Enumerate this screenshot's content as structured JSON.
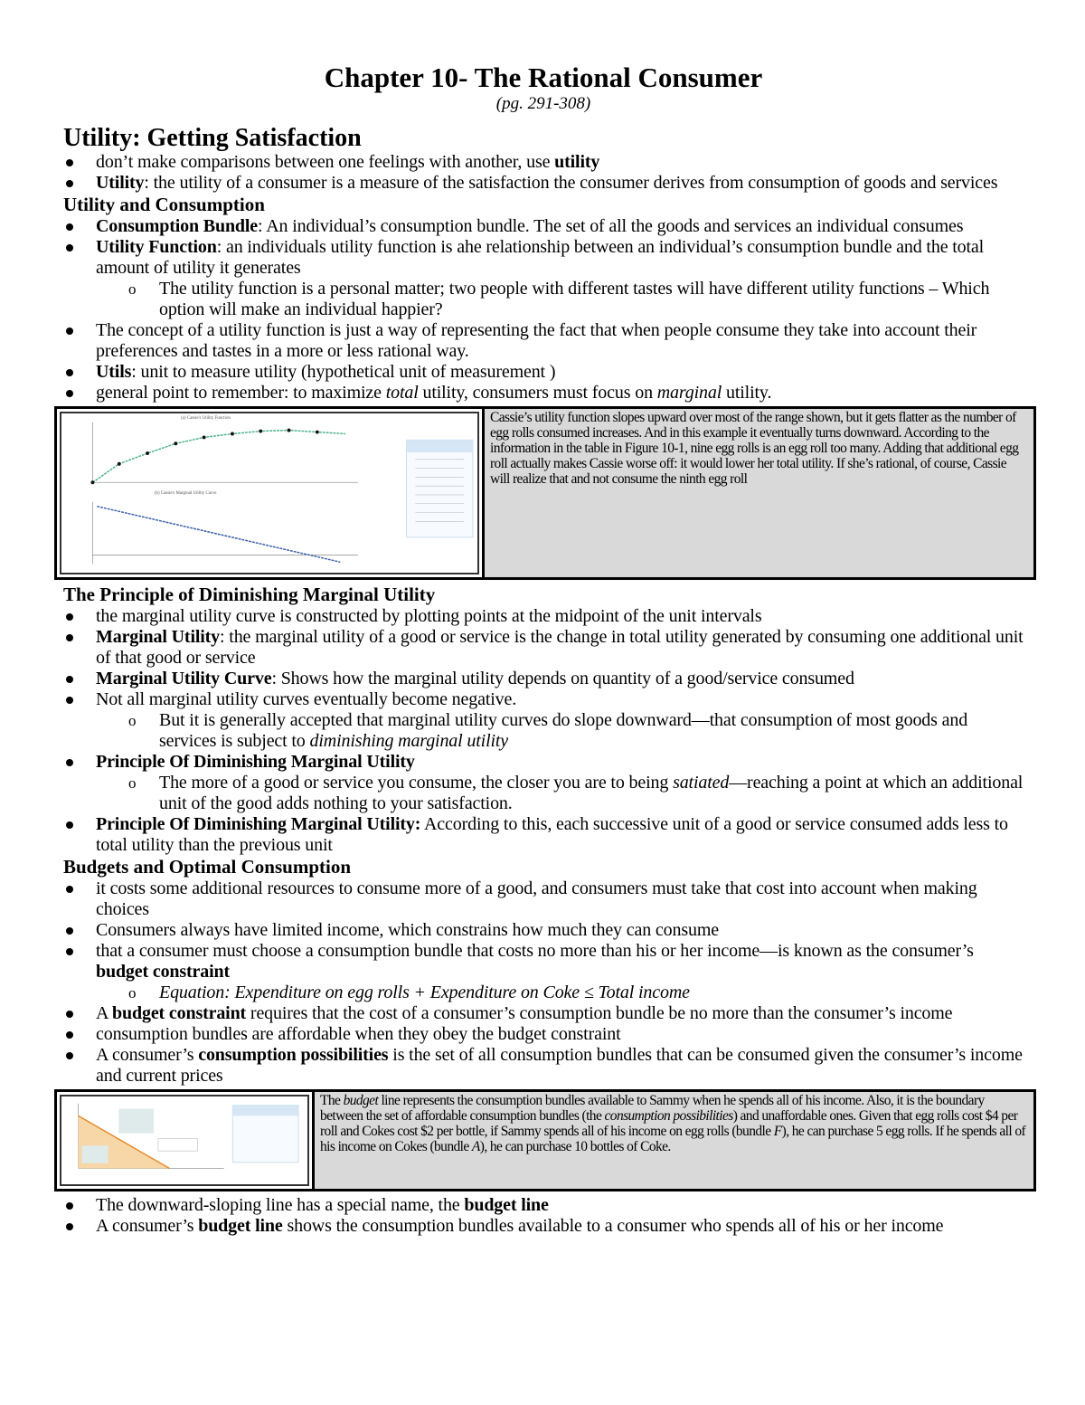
{
  "title": "Chapter 10- The Rational Consumer",
  "subtitle": "(pg. 291-308)",
  "blocks": [
    {
      "type": "h2",
      "segs": [
        {
          "t": "Utility: Getting Satisfaction"
        }
      ]
    },
    {
      "type": "bullet",
      "segs": [
        {
          "t": "don’t make comparisons between one feelings with another, use "
        },
        {
          "t": "utility",
          "b": true
        }
      ]
    },
    {
      "type": "bullet",
      "segs": [
        {
          "t": "Utility",
          "b": true
        },
        {
          "t": ": the utility of a consumer is a measure of the satisfaction the consumer derives from consumption of goods and services"
        }
      ]
    },
    {
      "type": "h3",
      "segs": [
        {
          "t": "Utility and Consumption"
        }
      ]
    },
    {
      "type": "bullet",
      "segs": [
        {
          "t": "Consumption Bundle",
          "b": true
        },
        {
          "t": ": An individual’s consumption bundle. The set of all the goods and services an individual consumes"
        }
      ]
    },
    {
      "type": "bullet",
      "segs": [
        {
          "t": "Utility Function",
          "b": true
        },
        {
          "t": ": an individuals utility function is ahe relationship between an individual’s consumption bundle and the total amount of utility it generates"
        }
      ]
    },
    {
      "type": "sub",
      "segs": [
        {
          "t": "The utility function is a personal matter; two people with different tastes will have different utility functions – Which option will make an individual happier?"
        }
      ]
    },
    {
      "type": "bullet",
      "segs": [
        {
          "t": "The concept of a utility function is just a way of representing the fact that when people consume they take into account their preferences and tastes in a more or less rational way."
        }
      ]
    },
    {
      "type": "bullet",
      "segs": [
        {
          "t": "Utils",
          "b": true
        },
        {
          "t": ": unit to measure utility (hypothetical unit of measurement )"
        }
      ]
    },
    {
      "type": "bullet",
      "segs": [
        {
          "t": "general point to remember: to maximize "
        },
        {
          "t": "total",
          "i": true
        },
        {
          "t": " utility, consumers must focus on "
        },
        {
          "t": "marginal",
          "i": true
        },
        {
          "t": " utility."
        }
      ]
    },
    {
      "type": "figure1",
      "segs": [
        {
          "t": "Cassie’s utility function slopes upward over most of the range shown, but it gets flatter as the number of egg rolls consumed increases. And in this example it eventually turns downward. According to the information in the table in Figure 10-1, nine egg rolls is an egg roll too many. Adding that additional egg roll actually makes Cassie worse off: it would lower her total utility. If she’s rational, of course, Cassie will realize that and not consume the ninth egg roll"
        }
      ]
    },
    {
      "type": "h3",
      "segs": [
        {
          "t": "The Principle of Diminishing Marginal Utility"
        }
      ]
    },
    {
      "type": "bullet",
      "segs": [
        {
          "t": "the marginal utility curve is constructed by plotting points at the midpoint of the unit intervals"
        }
      ]
    },
    {
      "type": "bullet",
      "segs": [
        {
          "t": "Marginal Utility",
          "b": true
        },
        {
          "t": ": the marginal utility of a good or service is the change in total utility generated by consuming one additional unit of that good or service"
        }
      ]
    },
    {
      "type": "bullet",
      "segs": [
        {
          "t": "Marginal Utility Curve",
          "b": true
        },
        {
          "t": ": Shows how the marginal utility depends on quantity of a good/service consumed"
        }
      ]
    },
    {
      "type": "bullet",
      "segs": [
        {
          "t": "Not all marginal utility curves eventually become negative."
        }
      ]
    },
    {
      "type": "sub",
      "segs": [
        {
          "t": "But it is generally accepted that marginal utility curves do slope downward—that consumption of most goods and services is subject to "
        },
        {
          "t": "diminishing marginal utility",
          "i": true
        }
      ]
    },
    {
      "type": "bullet",
      "segs": [
        {
          "t": "Principle Of Diminishing Marginal Utility",
          "b": true
        }
      ]
    },
    {
      "type": "sub",
      "segs": [
        {
          "t": "The more of a good or service you consume, the closer you are to being "
        },
        {
          "t": "satiated",
          "i": true
        },
        {
          "t": "—reaching a point at which an additional unit of the good adds nothing to your satisfaction."
        }
      ]
    },
    {
      "type": "bullet",
      "segs": [
        {
          "t": "Principle Of Diminishing Marginal Utility:",
          "b": true
        },
        {
          "t": " According to this, each successive unit of a good or service consumed adds less to total utility than the previous unit"
        }
      ]
    },
    {
      "type": "h3",
      "segs": [
        {
          "t": "Budgets and Optimal Consumption"
        }
      ]
    },
    {
      "type": "bullet",
      "segs": [
        {
          "t": "it costs some additional resources to consume more of a good, and consumers must take that cost into account when making choices"
        }
      ]
    },
    {
      "type": "bullet",
      "segs": [
        {
          "t": "Consumers always have limited income, which constrains how much they can consume"
        }
      ]
    },
    {
      "type": "bullet",
      "segs": [
        {
          "t": "that a consumer must choose a consumption bundle that costs no more than his or her income—is known as the consumer’s "
        },
        {
          "t": "budget constraint",
          "b": true
        }
      ]
    },
    {
      "type": "sub",
      "segs": [
        {
          "t": "Equation: Expenditure on egg rolls + Expenditure on Coke ≤ Total income",
          "i": true
        }
      ]
    },
    {
      "type": "bullet",
      "segs": [
        {
          "t": "A "
        },
        {
          "t": "budget constraint",
          "b": true
        },
        {
          "t": " requires that the cost of a consumer’s consumption bundle be no more than the consumer’s income"
        }
      ]
    },
    {
      "type": "bullet",
      "segs": [
        {
          "t": "consumption bundles are affordable when they obey the budget constraint"
        }
      ]
    },
    {
      "type": "bullet",
      "segs": [
        {
          "t": "A consumer’s "
        },
        {
          "t": "consumption possibilities",
          "b": true
        },
        {
          "t": " is the set of all consumption bundles that can be consumed given the consumer’s income and current prices"
        }
      ]
    },
    {
      "type": "figure2",
      "segs": [
        {
          "t": "The "
        },
        {
          "t": "budget",
          "i": true
        },
        {
          "t": " line represents the consumption bundles available to Sammy when he spends all of his income. Also, it is the boundary between the set of affordable consumption bundles (the "
        },
        {
          "t": "consumption possibilities",
          "i": true
        },
        {
          "t": ") and unaffordable ones. Given that egg rolls cost $4 per roll and Cokes cost $2 per bottle, if Sammy spends all of his income on egg rolls (bundle "
        },
        {
          "t": "F",
          "i": true
        },
        {
          "t": "), he can purchase 5 egg rolls. If he spends all of his income on Cokes (bundle "
        },
        {
          "t": "A",
          "i": true
        },
        {
          "t": "), he can purchase 10 bottles of Coke."
        }
      ]
    },
    {
      "type": "bullet",
      "segs": [
        {
          "t": "The downward-sloping line has a special name, the "
        },
        {
          "t": "budget line",
          "b": true
        }
      ]
    },
    {
      "type": "bullet",
      "segs": [
        {
          "t": "A consumer’s "
        },
        {
          "t": "budget line",
          "b": true
        },
        {
          "t": " shows the consumption bundles available to a consumer who spends all of his or her income"
        }
      ]
    }
  ]
}
